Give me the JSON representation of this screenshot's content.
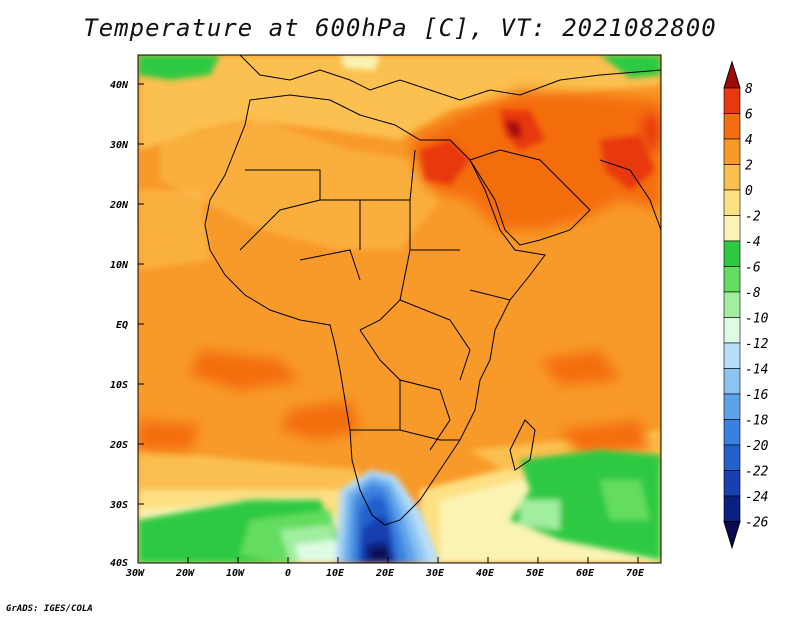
{
  "title": "Temperature at 600hPa [C], VT: 2021082800",
  "credit": "GrADS: IGES/COLA",
  "lat_labels": [
    "40N",
    "30N",
    "20N",
    "10N",
    "EQ",
    "10S",
    "20S",
    "30S",
    "40S"
  ],
  "lon_labels": [
    "30W",
    "20W",
    "10W",
    "0",
    "10E",
    "20E",
    "30E",
    "40E",
    "50E",
    "60E",
    "70E"
  ],
  "colorbar": {
    "labels": [
      "8",
      "6",
      "4",
      "2",
      "0",
      "-2",
      "-4",
      "-6",
      "-8",
      "-10",
      "-12",
      "-14",
      "-16",
      "-18",
      "-20",
      "-22",
      "-24",
      "-26"
    ],
    "colors": [
      "#a50a0a",
      "#e8380f",
      "#f46d0e",
      "#f89a2a",
      "#fbc04f",
      "#fce083",
      "#fbf3b4",
      "#2ec943",
      "#64dc5f",
      "#a2eea0",
      "#e0fbe4",
      "#b6def8",
      "#8cc4f2",
      "#5ea2ea",
      "#3a80de",
      "#2460cc",
      "#1740b0",
      "#0a2080",
      "#0a0a50"
    ]
  }
}
